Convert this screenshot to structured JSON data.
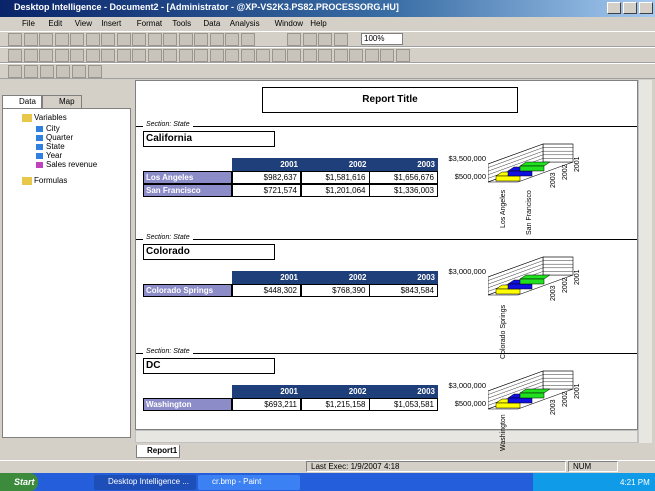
{
  "window": {
    "title": "Desktop Intelligence - Document2 - [Administrator - @XP-VS2K3.PS82.PROCESSORG.HU]"
  },
  "menu": [
    "File",
    "Edit",
    "View",
    "Insert",
    "Format",
    "Tools",
    "Data",
    "Analysis",
    "Window",
    "Help"
  ],
  "toolbar": {
    "zoom": "100%"
  },
  "left_panel": {
    "tabs": [
      "Data",
      "Map"
    ],
    "root": "Variables",
    "items": [
      "City",
      "Quarter",
      "State",
      "Year",
      "Sales revenue"
    ],
    "formulas": "Formulas"
  },
  "report": {
    "title": "Report Title",
    "sections": [
      {
        "label": "Section: State",
        "name": "California",
        "columns": [
          "2001",
          "2002",
          "2003"
        ],
        "rows": [
          {
            "city": "Los Angeles",
            "values": [
              "$982,637",
              "$1,581,616",
              "$1,656,676"
            ]
          },
          {
            "city": "San Francisco",
            "values": [
              "$721,574",
              "$1,201,064",
              "$1,336,003"
            ]
          }
        ],
        "chart": {
          "y_labels": [
            "$3,500,000",
            "$500,000"
          ],
          "x_labels": [
            "Los Angeles",
            "San Francisco"
          ],
          "z_labels": [
            "2003",
            "2002",
            "2001"
          ]
        }
      },
      {
        "label": "Section: State",
        "name": "Colorado",
        "columns": [
          "2001",
          "2002",
          "2003"
        ],
        "rows": [
          {
            "city": "Colorado Springs",
            "values": [
              "$448,302",
              "$768,390",
              "$843,584"
            ]
          }
        ],
        "chart": {
          "y_labels": [
            "$3,000,000"
          ],
          "x_labels": [
            "Colorado Springs"
          ],
          "z_labels": [
            "2003",
            "2002",
            "2001"
          ]
        }
      },
      {
        "label": "Section: State",
        "name": "DC",
        "columns": [
          "2001",
          "2002",
          "2003"
        ],
        "rows": [
          {
            "city": "Washington",
            "values": [
              "$693,211",
              "$1,215,158",
              "$1,053,581"
            ]
          }
        ],
        "chart": {
          "y_labels": [
            "$3,000,000",
            "$500,000"
          ],
          "x_labels": [
            "Washington"
          ],
          "z_labels": [
            "2003",
            "2002",
            "2001"
          ]
        }
      }
    ]
  },
  "report_tabs": [
    "Report1"
  ],
  "status": {
    "last_exec": "Last Exec: 1/9/2007 4:18",
    "num": "NUM"
  },
  "taskbar": {
    "start": "Start",
    "tasks": [
      "Desktop Intelligence ...",
      "cr.bmp - Paint"
    ],
    "clock": "4:21 PM"
  }
}
